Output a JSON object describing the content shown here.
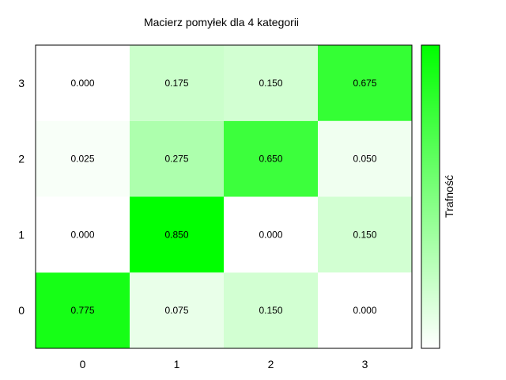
{
  "chart_data": {
    "type": "heatmap",
    "title": "Macierz pomyłek dla 4 kategorii",
    "xlabel": "",
    "ylabel": "",
    "x_categories": [
      "0",
      "1",
      "2",
      "3"
    ],
    "y_categories": [
      "0",
      "1",
      "2",
      "3"
    ],
    "matrix": [
      [
        0.775,
        0.075,
        0.15,
        0.0
      ],
      [
        0.0,
        0.85,
        0.0,
        0.15
      ],
      [
        0.025,
        0.275,
        0.65,
        0.05
      ],
      [
        0.0,
        0.175,
        0.15,
        0.675
      ]
    ],
    "value_range": [
      0,
      0.85
    ],
    "colormap": {
      "low": "#ffffff",
      "high": "#00ff00"
    },
    "colorbar": {
      "label": "Trafność",
      "ticks": false
    },
    "grid": false,
    "show_cell_values": true
  }
}
